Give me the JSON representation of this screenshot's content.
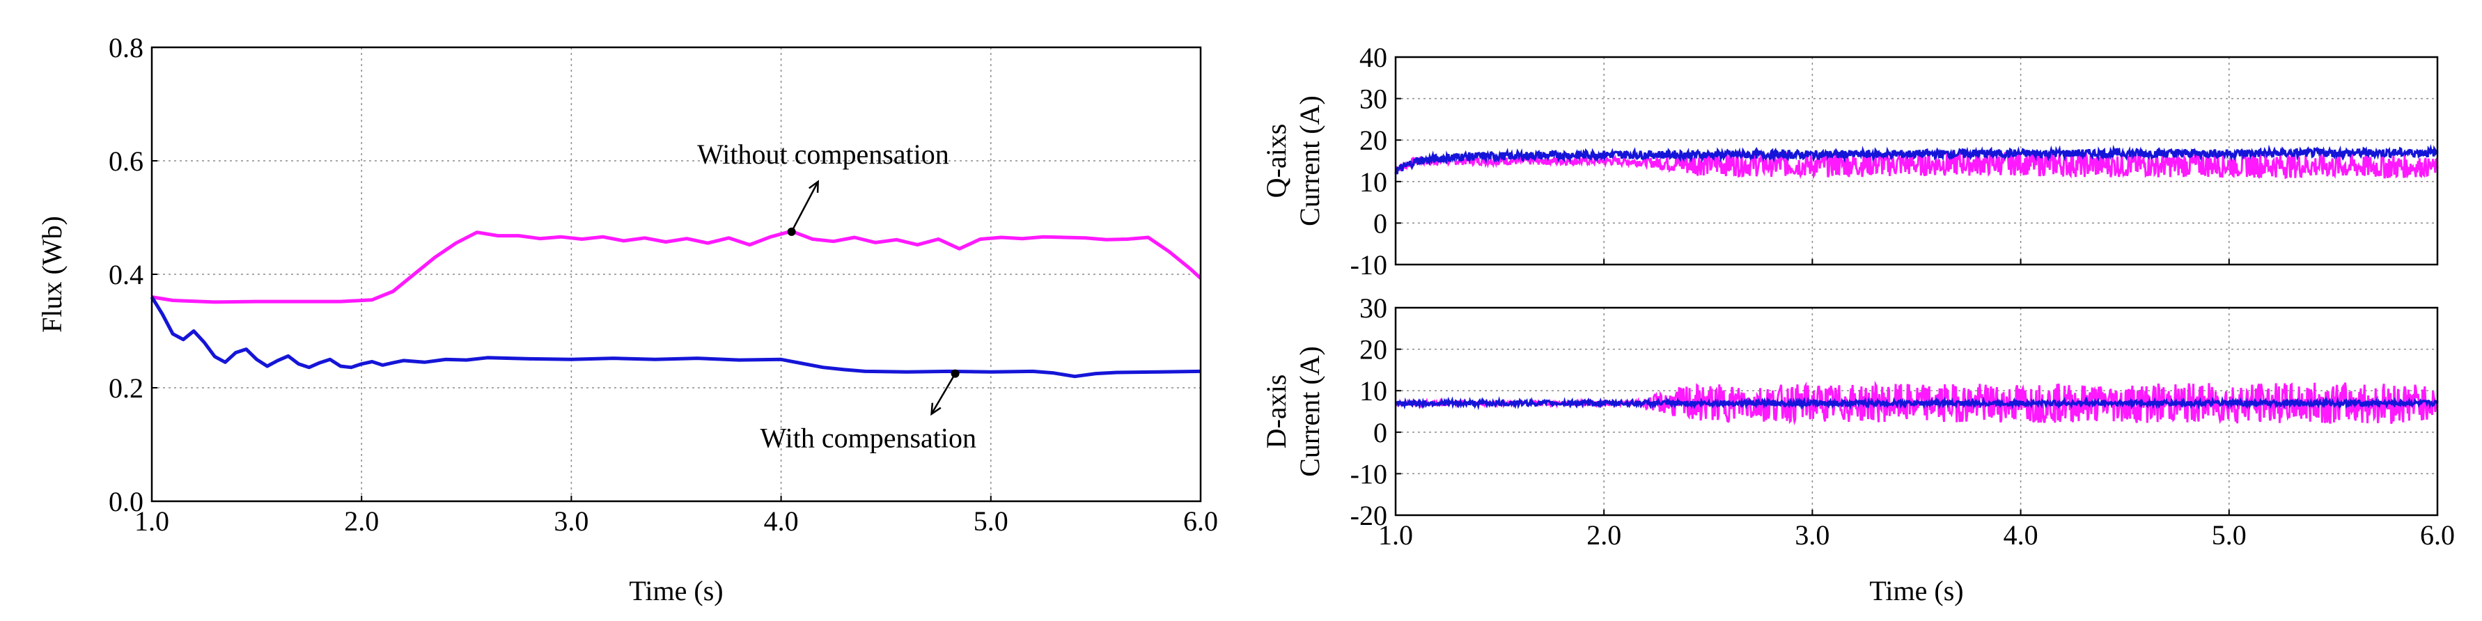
{
  "colors": {
    "magenta": "#ff19ff",
    "blue": "#1515d8",
    "annotation": "#000000"
  },
  "chart_data": [
    {
      "id": "flux",
      "type": "line",
      "xlabel": "Time (s)",
      "ylabel": "Flux (Wb)",
      "xlim": [
        1.0,
        6.0
      ],
      "ylim": [
        0.0,
        0.8
      ],
      "xticks": [
        1.0,
        2.0,
        3.0,
        4.0,
        5.0,
        6.0
      ],
      "xtick_labels": [
        "1.0",
        "2.0",
        "3.0",
        "4.0",
        "5.0",
        "6.0"
      ],
      "yticks": [
        0.0,
        0.2,
        0.4,
        0.6,
        0.8
      ],
      "ytick_labels": [
        "0.0",
        "0.2",
        "0.4",
        "0.6",
        "0.8"
      ],
      "grid": true,
      "series": [
        {
          "name": "Without compensation",
          "color": "#ff19ff",
          "x": [
            1.0,
            1.1,
            1.3,
            1.5,
            1.7,
            1.9,
            2.05,
            2.15,
            2.25,
            2.35,
            2.45,
            2.55,
            2.65,
            2.75,
            2.85,
            2.95,
            3.05,
            3.15,
            3.25,
            3.35,
            3.45,
            3.55,
            3.65,
            3.75,
            3.85,
            3.95,
            4.05,
            4.15,
            4.25,
            4.35,
            4.45,
            4.55,
            4.65,
            4.75,
            4.85,
            4.95,
            5.05,
            5.15,
            5.25,
            5.35,
            5.45,
            5.55,
            5.65,
            5.75,
            5.85,
            5.95,
            6.0
          ],
          "y": [
            0.36,
            0.354,
            0.351,
            0.352,
            0.352,
            0.352,
            0.355,
            0.37,
            0.4,
            0.43,
            0.455,
            0.474,
            0.468,
            0.468,
            0.463,
            0.466,
            0.462,
            0.466,
            0.459,
            0.464,
            0.457,
            0.463,
            0.455,
            0.464,
            0.452,
            0.466,
            0.476,
            0.462,
            0.458,
            0.465,
            0.456,
            0.461,
            0.452,
            0.462,
            0.445,
            0.462,
            0.465,
            0.463,
            0.466,
            0.465,
            0.464,
            0.461,
            0.462,
            0.465,
            0.44,
            0.41,
            0.393
          ]
        },
        {
          "name": "With compensation",
          "color": "#1515d8",
          "x": [
            1.0,
            1.05,
            1.1,
            1.15,
            1.2,
            1.25,
            1.3,
            1.35,
            1.4,
            1.45,
            1.5,
            1.55,
            1.6,
            1.65,
            1.7,
            1.75,
            1.8,
            1.85,
            1.9,
            1.95,
            2.0,
            2.05,
            2.1,
            2.15,
            2.2,
            2.3,
            2.4,
            2.5,
            2.6,
            2.8,
            3.0,
            3.2,
            3.4,
            3.6,
            3.8,
            4.0,
            4.1,
            4.2,
            4.3,
            4.4,
            4.6,
            4.8,
            5.0,
            5.2,
            5.3,
            5.4,
            5.5,
            5.6,
            5.8,
            6.0
          ],
          "y": [
            0.36,
            0.33,
            0.295,
            0.285,
            0.3,
            0.28,
            0.255,
            0.245,
            0.262,
            0.268,
            0.25,
            0.238,
            0.248,
            0.256,
            0.242,
            0.236,
            0.244,
            0.25,
            0.238,
            0.236,
            0.242,
            0.246,
            0.24,
            0.244,
            0.248,
            0.245,
            0.25,
            0.249,
            0.253,
            0.251,
            0.25,
            0.252,
            0.25,
            0.252,
            0.249,
            0.25,
            0.243,
            0.236,
            0.232,
            0.229,
            0.228,
            0.229,
            0.228,
            0.229,
            0.226,
            0.22,
            0.225,
            0.227,
            0.228,
            0.229
          ]
        }
      ],
      "annotations": [
        {
          "text": "Without compensation",
          "x": 4.05,
          "y": 0.475,
          "text_x": 3.6,
          "text_y": 0.595
        },
        {
          "text": "With compensation",
          "x": 4.83,
          "y": 0.225,
          "text_x": 3.9,
          "text_y": 0.095
        }
      ]
    },
    {
      "id": "q-axis",
      "type": "line",
      "xlabel": "",
      "ylabel": "Q-aixs Current (A)",
      "ylabel_lines": [
        "Q-aixs",
        "Current (A)"
      ],
      "xlim": [
        1.0,
        6.0
      ],
      "ylim": [
        -10,
        40
      ],
      "xticks": [
        1.0,
        2.0,
        3.0,
        4.0,
        5.0,
        6.0
      ],
      "yticks": [
        -10,
        0,
        10,
        20,
        30,
        40
      ],
      "ytick_labels": [
        "-10",
        "0",
        "10",
        "20",
        "30",
        "40"
      ],
      "grid": true,
      "series": [
        {
          "name": "Without compensation",
          "color": "#ff19ff",
          "band_center": [
            [
              1.0,
              13
            ],
            [
              1.1,
              15
            ],
            [
              1.3,
              15
            ],
            [
              2.0,
              15
            ],
            [
              2.3,
              14.5
            ],
            [
              3.0,
              14
            ],
            [
              4.0,
              14.5
            ],
            [
              4.3,
              14
            ],
            [
              5.0,
              14
            ],
            [
              6.0,
              13.5
            ]
          ],
          "band_halfwidth": [
            [
              1.0,
              1
            ],
            [
              2.2,
              1
            ],
            [
              2.4,
              3
            ],
            [
              5.8,
              3
            ],
            [
              6.0,
              2
            ]
          ]
        },
        {
          "name": "With compensation",
          "color": "#1515d8",
          "band_center": [
            [
              1.0,
              12.5
            ],
            [
              1.1,
              15
            ],
            [
              1.3,
              16
            ],
            [
              2.0,
              16.5
            ],
            [
              3.0,
              16.5
            ],
            [
              4.0,
              16.8
            ],
            [
              5.0,
              16.8
            ],
            [
              6.0,
              17
            ]
          ],
          "band_halfwidth": [
            [
              1.0,
              1
            ],
            [
              6.0,
              1
            ]
          ]
        }
      ]
    },
    {
      "id": "d-axis",
      "type": "line",
      "xlabel": "Time (s)",
      "ylabel": "D-axis Current (A)",
      "ylabel_lines": [
        "D-axis",
        "Current (A)"
      ],
      "xlim": [
        1.0,
        6.0
      ],
      "ylim": [
        -20,
        30
      ],
      "xticks": [
        1.0,
        2.0,
        3.0,
        4.0,
        5.0,
        6.0
      ],
      "xtick_labels": [
        "1.0",
        "2.0",
        "3.0",
        "4.0",
        "5.0",
        "6.0"
      ],
      "yticks": [
        -20,
        -10,
        0,
        10,
        20,
        30
      ],
      "ytick_labels": [
        "-20",
        "-10",
        "0",
        "10",
        "20",
        "30"
      ],
      "grid": true,
      "series": [
        {
          "name": "Without compensation",
          "color": "#ff19ff",
          "band_center": [
            [
              1.0,
              7
            ],
            [
              6.0,
              7
            ]
          ],
          "band_halfwidth": [
            [
              1.0,
              0.5
            ],
            [
              2.15,
              0.5
            ],
            [
              2.4,
              4.5
            ],
            [
              5.9,
              5
            ],
            [
              6.0,
              3
            ]
          ]
        },
        {
          "name": "With compensation",
          "color": "#1515d8",
          "band_center": [
            [
              1.0,
              7
            ],
            [
              6.0,
              7
            ]
          ],
          "band_halfwidth": [
            [
              1.0,
              0.6
            ],
            [
              6.0,
              0.6
            ]
          ]
        }
      ]
    }
  ]
}
